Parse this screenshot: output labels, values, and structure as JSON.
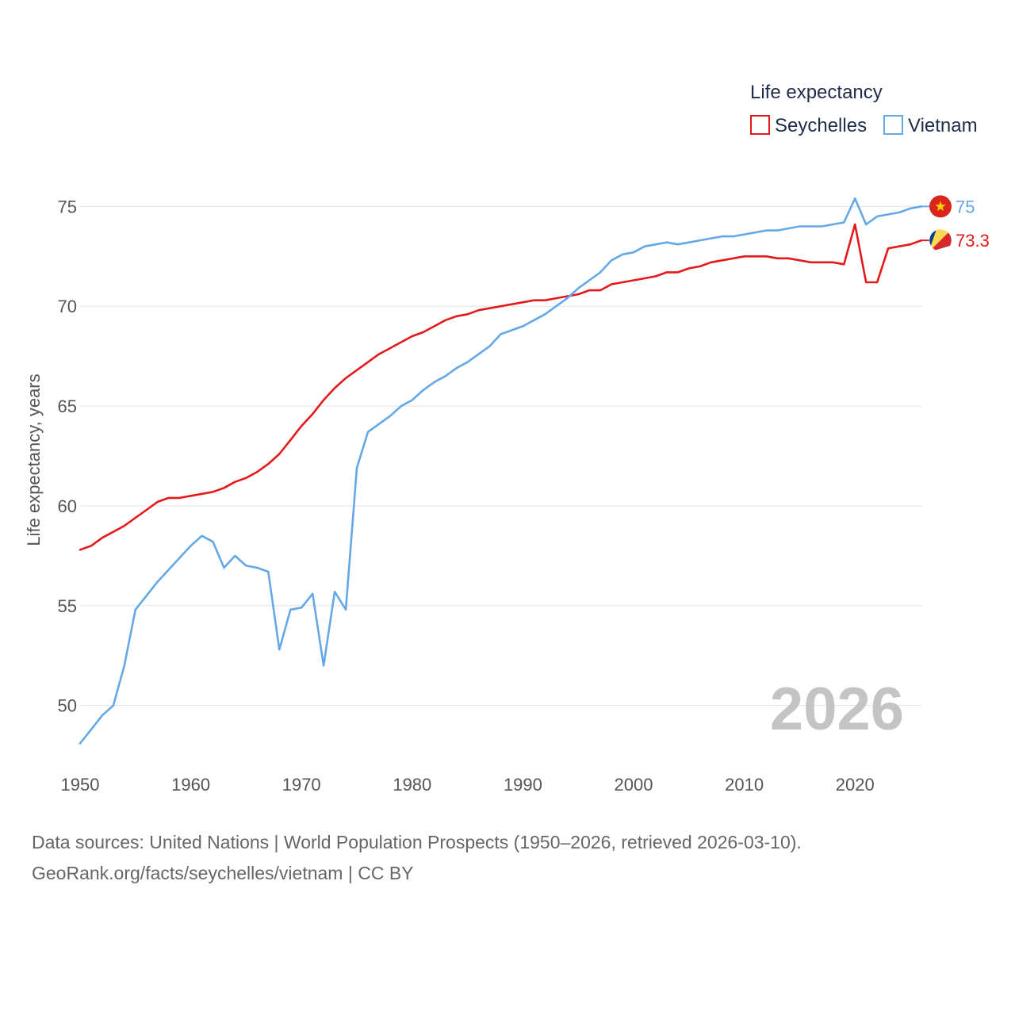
{
  "chart_data": {
    "type": "line",
    "title": "",
    "xlabel": "",
    "ylabel": "Life expectancy, years",
    "xlim": [
      1950,
      2026
    ],
    "ylim": [
      48,
      77
    ],
    "x_ticks": [
      1950,
      1960,
      1970,
      1980,
      1990,
      2000,
      2010,
      2020
    ],
    "y_ticks": [
      50,
      55,
      60,
      65,
      70,
      75
    ],
    "grid": "horizontal",
    "legend": {
      "title": "Life expectancy",
      "position": "top-right",
      "entries": [
        "Seychelles",
        "Vietnam"
      ]
    },
    "year_label": "2026",
    "x": [
      1950,
      1951,
      1952,
      1953,
      1954,
      1955,
      1956,
      1957,
      1958,
      1959,
      1960,
      1961,
      1962,
      1963,
      1964,
      1965,
      1966,
      1967,
      1968,
      1969,
      1970,
      1971,
      1972,
      1973,
      1974,
      1975,
      1976,
      1977,
      1978,
      1979,
      1980,
      1981,
      1982,
      1983,
      1984,
      1985,
      1986,
      1987,
      1988,
      1989,
      1990,
      1991,
      1992,
      1993,
      1994,
      1995,
      1996,
      1997,
      1998,
      1999,
      2000,
      2001,
      2002,
      2003,
      2004,
      2005,
      2006,
      2007,
      2008,
      2009,
      2010,
      2011,
      2012,
      2013,
      2014,
      2015,
      2016,
      2017,
      2018,
      2019,
      2020,
      2021,
      2022,
      2023,
      2024,
      2025,
      2026
    ],
    "series": [
      {
        "name": "Seychelles",
        "color": "#e31a1c",
        "end_label": "73.3",
        "flag": "seychelles-flag",
        "values": [
          57.8,
          58.0,
          58.4,
          58.7,
          59.0,
          59.4,
          59.8,
          60.2,
          60.4,
          60.4,
          60.5,
          60.6,
          60.7,
          60.9,
          61.2,
          61.4,
          61.7,
          62.1,
          62.6,
          63.3,
          64.0,
          64.6,
          65.3,
          65.9,
          66.4,
          66.8,
          67.2,
          67.6,
          67.9,
          68.2,
          68.5,
          68.7,
          69.0,
          69.3,
          69.5,
          69.6,
          69.8,
          69.9,
          70.0,
          70.1,
          70.2,
          70.3,
          70.3,
          70.4,
          70.5,
          70.6,
          70.8,
          70.8,
          71.1,
          71.2,
          71.3,
          71.4,
          71.5,
          71.7,
          71.7,
          71.9,
          72.0,
          72.2,
          72.3,
          72.4,
          72.5,
          72.5,
          72.5,
          72.4,
          72.4,
          72.3,
          72.2,
          72.2,
          72.2,
          72.1,
          74.1,
          71.2,
          71.2,
          72.9,
          73.0,
          73.1,
          73.3
        ]
      },
      {
        "name": "Vietnam",
        "color": "#64a8e6",
        "end_label": "75",
        "flag": "vietnam-flag",
        "values": [
          48.1,
          48.8,
          49.5,
          50.0,
          52.0,
          54.8,
          55.5,
          56.2,
          56.8,
          57.4,
          58.0,
          58.5,
          58.2,
          56.9,
          57.5,
          57.0,
          56.9,
          56.7,
          52.8,
          54.8,
          54.9,
          55.6,
          52.0,
          55.7,
          54.8,
          61.9,
          63.7,
          64.1,
          64.5,
          65.0,
          65.3,
          65.8,
          66.2,
          66.5,
          66.9,
          67.2,
          67.6,
          68.0,
          68.6,
          68.8,
          69.0,
          69.3,
          69.6,
          70.0,
          70.4,
          70.9,
          71.3,
          71.7,
          72.3,
          72.6,
          72.7,
          73.0,
          73.1,
          73.2,
          73.1,
          73.2,
          73.3,
          73.4,
          73.5,
          73.5,
          73.6,
          73.7,
          73.8,
          73.8,
          73.9,
          74.0,
          74.0,
          74.0,
          74.1,
          74.2,
          75.4,
          74.1,
          74.5,
          74.6,
          74.7,
          74.9,
          75.0
        ]
      }
    ]
  },
  "footer": {
    "line1": "Data sources: United Nations | World Population Prospects (1950–2026, retrieved 2026-03-10).",
    "line2": "GeoRank.org/facts/seychelles/vietnam | CC BY"
  }
}
